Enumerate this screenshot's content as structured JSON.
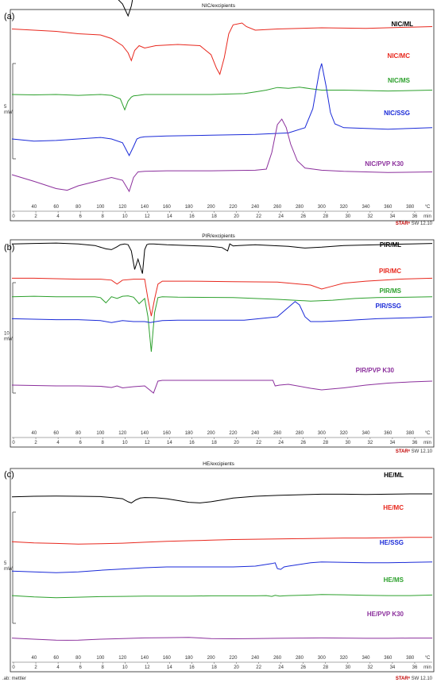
{
  "charts": [
    {
      "title": "NIC/excipients",
      "letter": "(a)",
      "scale_label": "5\nmW",
      "x_ticks_c": [
        "40",
        "60",
        "80",
        "100",
        "120",
        "140",
        "160",
        "180",
        "200",
        "220",
        "240",
        "260",
        "280",
        "300",
        "320",
        "340",
        "360",
        "380",
        "°C"
      ],
      "x_ticks_min": [
        "0",
        "2",
        "4",
        "6",
        "8",
        "10",
        "12",
        "14",
        "16",
        "18",
        "20",
        "22",
        "24",
        "26",
        "28",
        "30",
        "32",
        "34",
        "36",
        "min"
      ],
      "software": "STARᵉ SW 12.10",
      "series": [
        {
          "name": "NIC/ML",
          "color": "#000000",
          "x": [
            20,
            40,
            60,
            80,
            100,
            110,
            120,
            125,
            128,
            130,
            135,
            140,
            160,
            180,
            200,
            220,
            240,
            250,
            255,
            258,
            262,
            266,
            270,
            290,
            320,
            350,
            380,
            400
          ],
          "y": [
            0.92,
            0.95,
            0.9,
            0.96,
            0.92,
            0.88,
            0.6,
            0.3,
            0.55,
            0.85,
            0.87,
            0.88,
            0.9,
            0.88,
            0.9,
            0.88,
            0.9,
            0.92,
            0.96,
            1.0,
            0.92,
            0.9,
            0.9,
            0.91,
            0.93,
            0.95,
            0.96,
            0.97
          ]
        },
        {
          "name": "NIC/MC",
          "color": "#e8281e",
          "x": [
            20,
            40,
            60,
            80,
            100,
            110,
            120,
            125,
            128,
            131,
            135,
            140,
            150,
            170,
            190,
            200,
            205,
            208,
            212,
            216,
            220,
            228,
            232,
            240,
            260,
            300,
            340,
            380,
            400
          ],
          "y": [
            0.78,
            0.76,
            0.74,
            0.7,
            0.68,
            0.62,
            0.5,
            0.38,
            0.25,
            0.42,
            0.5,
            0.46,
            0.5,
            0.52,
            0.5,
            0.35,
            0.12,
            0.02,
            0.3,
            0.7,
            0.85,
            0.88,
            0.82,
            0.76,
            0.78,
            0.8,
            0.79,
            0.81,
            0.82
          ]
        },
        {
          "name": "NIC/MS",
          "color": "#2ca02c",
          "x": [
            20,
            40,
            60,
            80,
            100,
            110,
            118,
            122,
            125,
            128,
            130,
            134,
            140,
            160,
            200,
            230,
            240,
            250,
            260,
            270,
            280,
            290,
            300,
            320,
            360,
            400
          ],
          "y": [
            0.2,
            0.19,
            0.2,
            0.18,
            0.2,
            0.18,
            0.1,
            -0.15,
            0.05,
            0.14,
            0.17,
            0.18,
            0.2,
            0.2,
            0.2,
            0.22,
            0.26,
            0.3,
            0.36,
            0.34,
            0.37,
            0.33,
            0.3,
            0.3,
            0.28,
            0.3
          ]
        },
        {
          "name": "NIC/SSG",
          "color": "#1a2ad8",
          "x": [
            20,
            40,
            60,
            80,
            100,
            110,
            120,
            126,
            130,
            133,
            136,
            140,
            160,
            200,
            240,
            270,
            285,
            292,
            298,
            300,
            304,
            308,
            312,
            320,
            340,
            360,
            380,
            400
          ],
          "y": [
            0.0,
            -0.03,
            -0.02,
            0.0,
            0.02,
            0.0,
            -0.05,
            -0.22,
            -0.1,
            0.0,
            0.02,
            0.03,
            0.04,
            0.05,
            0.06,
            0.08,
            0.15,
            0.4,
            0.9,
            1.0,
            0.7,
            0.35,
            0.2,
            0.15,
            0.14,
            0.13,
            0.14,
            0.15
          ]
        },
        {
          "name": "NIC/PVP K30",
          "color": "#8b2f9c",
          "x": [
            20,
            40,
            60,
            70,
            80,
            100,
            110,
            120,
            126,
            130,
            134,
            140,
            160,
            200,
            240,
            250,
            255,
            260,
            264,
            268,
            272,
            278,
            285,
            300,
            320,
            360,
            400
          ],
          "y": [
            0.0,
            -0.12,
            -0.25,
            -0.28,
            -0.2,
            -0.1,
            -0.05,
            -0.1,
            -0.3,
            -0.05,
            0.05,
            0.06,
            0.07,
            0.07,
            0.08,
            0.1,
            0.4,
            0.9,
            1.0,
            0.85,
            0.55,
            0.25,
            0.12,
            0.08,
            0.06,
            0.04,
            0.05
          ]
        }
      ]
    },
    {
      "title": "PIR/excipients",
      "letter": "(b)",
      "scale_label": "10\nmW",
      "x_ticks_c": [
        "40",
        "60",
        "80",
        "100",
        "120",
        "140",
        "160",
        "180",
        "200",
        "220",
        "240",
        "260",
        "280",
        "300",
        "320",
        "340",
        "360",
        "380",
        "°C"
      ],
      "x_ticks_min": [
        "0",
        "2",
        "4",
        "6",
        "8",
        "10",
        "12",
        "14",
        "16",
        "18",
        "20",
        "22",
        "24",
        "26",
        "28",
        "30",
        "32",
        "34",
        "36",
        "min"
      ],
      "software": "STARᵉ SW 12.10",
      "series": [
        {
          "name": "PIR/ML",
          "color": "#000000",
          "x": [
            20,
            40,
            60,
            80,
            95,
            105,
            110,
            115,
            118,
            122,
            125,
            128,
            131,
            134,
            138,
            140,
            142,
            144,
            148,
            160,
            180,
            200,
            210,
            215,
            217,
            220,
            225,
            240,
            270,
            285,
            300,
            320,
            350,
            380,
            400
          ],
          "y": [
            0.92,
            0.93,
            0.94,
            0.92,
            0.88,
            0.8,
            0.78,
            0.85,
            0.9,
            0.92,
            0.9,
            0.75,
            0.3,
            0.55,
            0.2,
            0.78,
            0.9,
            0.92,
            0.92,
            0.9,
            0.88,
            0.86,
            0.83,
            0.75,
            0.92,
            0.87,
            0.88,
            0.9,
            0.86,
            0.82,
            0.84,
            0.88,
            0.9,
            0.92,
            0.93
          ]
        },
        {
          "name": "PIR/MC",
          "color": "#e8281e",
          "x": [
            20,
            40,
            60,
            80,
            100,
            110,
            115,
            120,
            130,
            140,
            143,
            146,
            149,
            152,
            156,
            160,
            180,
            220,
            260,
            290,
            300,
            310,
            320,
            340,
            370,
            400
          ],
          "y": [
            0.72,
            0.72,
            0.71,
            0.7,
            0.7,
            0.68,
            0.6,
            0.68,
            0.7,
            0.7,
            0.3,
            -0.05,
            0.3,
            0.6,
            0.66,
            0.66,
            0.66,
            0.65,
            0.64,
            0.58,
            0.5,
            0.56,
            0.62,
            0.66,
            0.7,
            0.72
          ]
        },
        {
          "name": "PIR/MS",
          "color": "#2ca02c",
          "x": [
            20,
            40,
            60,
            80,
            95,
            100,
            105,
            110,
            115,
            120,
            125,
            130,
            135,
            140,
            143,
            146,
            149,
            152,
            156,
            170,
            220,
            260,
            290,
            310,
            330,
            350,
            380,
            400
          ],
          "y": [
            0.66,
            0.67,
            0.66,
            0.66,
            0.66,
            0.64,
            0.52,
            0.66,
            0.62,
            0.67,
            0.68,
            0.65,
            0.5,
            0.62,
            0.2,
            -0.6,
            0.3,
            0.64,
            0.66,
            0.65,
            0.64,
            0.6,
            0.56,
            0.58,
            0.62,
            0.64,
            0.65,
            0.66
          ]
        },
        {
          "name": "PIR/SSG",
          "color": "#1a2ad8",
          "x": [
            20,
            40,
            60,
            80,
            100,
            110,
            115,
            120,
            130,
            140,
            145,
            150,
            156,
            170,
            200,
            230,
            260,
            270,
            276,
            280,
            285,
            290,
            300,
            320,
            350,
            380,
            400
          ],
          "y": [
            0.56,
            0.55,
            0.54,
            0.54,
            0.52,
            0.48,
            0.5,
            0.52,
            0.5,
            0.5,
            0.48,
            0.5,
            0.52,
            0.53,
            0.53,
            0.53,
            0.6,
            0.8,
            0.92,
            0.85,
            0.6,
            0.5,
            0.5,
            0.52,
            0.56,
            0.58,
            0.6
          ]
        },
        {
          "name": "PIR/PVP K30",
          "color": "#8b2f9c",
          "x": [
            20,
            40,
            60,
            80,
            100,
            110,
            115,
            120,
            130,
            140,
            148,
            152,
            156,
            170,
            200,
            230,
            256,
            258,
            262,
            270,
            290,
            300,
            320,
            340,
            360,
            380,
            400
          ],
          "y": [
            0.1,
            0.09,
            0.08,
            0.08,
            0.07,
            0.04,
            0.08,
            0.03,
            0.06,
            0.08,
            -0.1,
            0.2,
            0.22,
            0.22,
            0.22,
            0.22,
            0.22,
            0.08,
            0.1,
            0.12,
            0.02,
            -0.02,
            0.03,
            0.1,
            0.15,
            0.18,
            0.2
          ]
        }
      ]
    },
    {
      "title": "HE/excipients",
      "letter": "(c)",
      "scale_label": "5\nmW",
      "x_ticks_c": [
        "40",
        "60",
        "80",
        "100",
        "120",
        "140",
        "160",
        "180",
        "200",
        "220",
        "240",
        "260",
        "280",
        "300",
        "320",
        "340",
        "360",
        "380",
        "°C"
      ],
      "x_ticks_min": [
        "0",
        "2",
        "4",
        "6",
        "8",
        "10",
        "12",
        "14",
        "16",
        "18",
        "20",
        "22",
        "24",
        "26",
        "28",
        "30",
        "32",
        "34",
        "36",
        "min"
      ],
      "software": "STARᵉ SW 12.10",
      "footer_left": ".ab: mettler",
      "series": [
        {
          "name": "HE/ML",
          "color": "#000000",
          "x": [
            20,
            40,
            60,
            80,
            100,
            110,
            120,
            125,
            128,
            132,
            136,
            140,
            150,
            160,
            170,
            180,
            190,
            200,
            210,
            220,
            240,
            260,
            280,
            300,
            320,
            340,
            360,
            380,
            400
          ],
          "y": [
            0.9,
            0.92,
            0.93,
            0.92,
            0.91,
            0.88,
            0.84,
            0.74,
            0.7,
            0.8,
            0.86,
            0.88,
            0.87,
            0.84,
            0.78,
            0.72,
            0.7,
            0.74,
            0.8,
            0.86,
            0.92,
            0.95,
            0.97,
            0.99,
            0.99,
            0.98,
            0.99,
            1.0,
            1.0
          ]
        },
        {
          "name": "HE/MC",
          "color": "#e8281e",
          "x": [
            20,
            40,
            60,
            80,
            100,
            120,
            140,
            160,
            180,
            200,
            220,
            240,
            260,
            280,
            300,
            320,
            340,
            360,
            380,
            400
          ],
          "y": [
            0.68,
            0.64,
            0.62,
            0.6,
            0.61,
            0.63,
            0.66,
            0.69,
            0.71,
            0.73,
            0.75,
            0.76,
            0.77,
            0.78,
            0.79,
            0.8,
            0.8,
            0.81,
            0.82,
            0.82
          ]
        },
        {
          "name": "HE/SSG",
          "color": "#1a2ad8",
          "x": [
            20,
            40,
            60,
            80,
            100,
            120,
            140,
            160,
            180,
            200,
            220,
            240,
            255,
            258,
            260,
            263,
            266,
            270,
            280,
            290,
            300,
            320,
            340,
            360,
            380,
            400
          ],
          "y": [
            0.4,
            0.38,
            0.36,
            0.38,
            0.42,
            0.45,
            0.48,
            0.5,
            0.5,
            0.5,
            0.5,
            0.52,
            0.58,
            0.6,
            0.46,
            0.44,
            0.5,
            0.52,
            0.56,
            0.6,
            0.62,
            0.61,
            0.6,
            0.6,
            0.61,
            0.62
          ]
        },
        {
          "name": "HE/MS",
          "color": "#2ca02c",
          "x": [
            20,
            40,
            60,
            80,
            100,
            120,
            140,
            160,
            180,
            200,
            220,
            240,
            250,
            255,
            258,
            262,
            266,
            270,
            280,
            290,
            300,
            320,
            340,
            360,
            380,
            400
          ],
          "y": [
            0.3,
            0.25,
            0.22,
            0.24,
            0.26,
            0.27,
            0.28,
            0.28,
            0.28,
            0.29,
            0.29,
            0.29,
            0.3,
            0.27,
            0.31,
            0.28,
            0.29,
            0.3,
            0.31,
            0.32,
            0.34,
            0.33,
            0.31,
            0.3,
            0.3,
            0.32
          ]
        },
        {
          "name": "HE/PVP K30",
          "color": "#8b2f9c",
          "x": [
            20,
            40,
            60,
            70,
            80,
            100,
            120,
            140,
            160,
            180,
            200,
            220,
            240,
            260,
            280,
            300,
            320,
            340,
            360,
            380,
            400
          ],
          "y": [
            0.12,
            0.07,
            0.03,
            0.02,
            0.03,
            0.07,
            0.1,
            0.13,
            0.14,
            0.15,
            0.1,
            0.09,
            0.1,
            0.11,
            0.12,
            0.13,
            0.12,
            0.11,
            0.11,
            0.12,
            0.12
          ]
        }
      ]
    }
  ],
  "chart_data": [
    {
      "type": "line",
      "title": "NIC/excipients",
      "xlabel": "°C",
      "series": [
        "NIC/ML",
        "NIC/MC",
        "NIC/MS",
        "NIC/SSG",
        "NIC/PVP K30"
      ]
    },
    {
      "type": "line",
      "title": "PIR/excipients",
      "xlabel": "°C",
      "series": [
        "PIR/ML",
        "PIR/MC",
        "PIR/MS",
        "PIR/SSG",
        "PIR/PVP K30"
      ]
    },
    {
      "type": "line",
      "title": "HE/excipients",
      "xlabel": "°C",
      "series": [
        "HE/ML",
        "HE/MC",
        "HE/SSG",
        "HE/MS",
        "HE/PVP K30"
      ]
    }
  ]
}
